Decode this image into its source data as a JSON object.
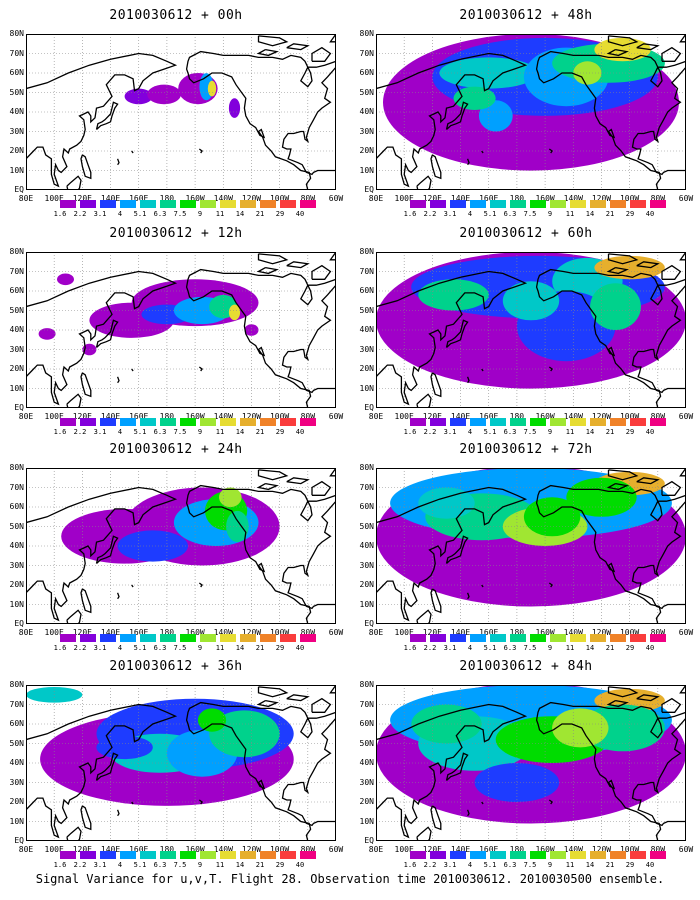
{
  "colorbar": {
    "levels": [
      "1.6",
      "2.2",
      "3.1",
      "4",
      "5.1",
      "6.3",
      "7.5",
      "9",
      "11",
      "14",
      "21",
      "29",
      "40"
    ],
    "colors": [
      "#a000c8",
      "#8200dc",
      "#1e3cff",
      "#00a0ff",
      "#00c8c8",
      "#00d28c",
      "#00dc00",
      "#a0e632",
      "#e6dc32",
      "#e6af2d",
      "#f08228",
      "#fa3c3c",
      "#f00082"
    ]
  },
  "axes": {
    "lat_labels": [
      "80N",
      "70N",
      "60N",
      "50N",
      "40N",
      "30N",
      "20N",
      "10N",
      "EQ"
    ],
    "lon_labels": [
      "80E",
      "100E",
      "120E",
      "140E",
      "160E",
      "180",
      "160W",
      "140W",
      "120W",
      "100W",
      "80W",
      "60W"
    ]
  },
  "panels": [
    {
      "title": "2010030612 + 00h",
      "lead_hours": 0
    },
    {
      "title": "2010030612 + 48h",
      "lead_hours": 48
    },
    {
      "title": "2010030612 + 12h",
      "lead_hours": 12
    },
    {
      "title": "2010030612 + 60h",
      "lead_hours": 60
    },
    {
      "title": "2010030612 + 24h",
      "lead_hours": 24
    },
    {
      "title": "2010030612 + 72h",
      "lead_hours": 72
    },
    {
      "title": "2010030612 + 36h",
      "lead_hours": 36
    },
    {
      "title": "2010030612 + 84h",
      "lead_hours": 84
    }
  ],
  "caption": "Signal Variance for u,v,T. Flight 28. Observation time 2010030612. 2010030500 ensemble."
}
